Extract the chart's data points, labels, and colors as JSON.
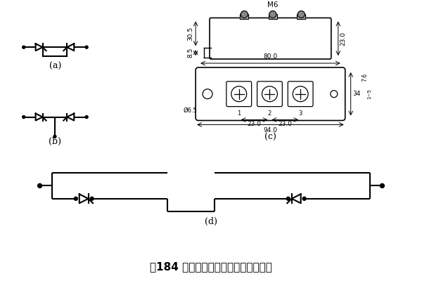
{
  "title": "图184 双臂晶闸管模块交流调压主电路",
  "label_a": "(a)",
  "label_b": "(b)",
  "label_c": "(c)",
  "label_d": "(d)",
  "m6_label": "M6",
  "dim_30_5": "30.5",
  "dim_8_5": "8.5",
  "dim_23_0_side": "23.0",
  "dim_80_0": "80.0",
  "dim_94_0": "94.0",
  "dim_23_0_a": "23.0",
  "dim_23_0_b": "23.0",
  "dim_34": "34",
  "dim_6_5": "Ø6.5",
  "bg_color": "#ffffff",
  "line_color": "#000000"
}
